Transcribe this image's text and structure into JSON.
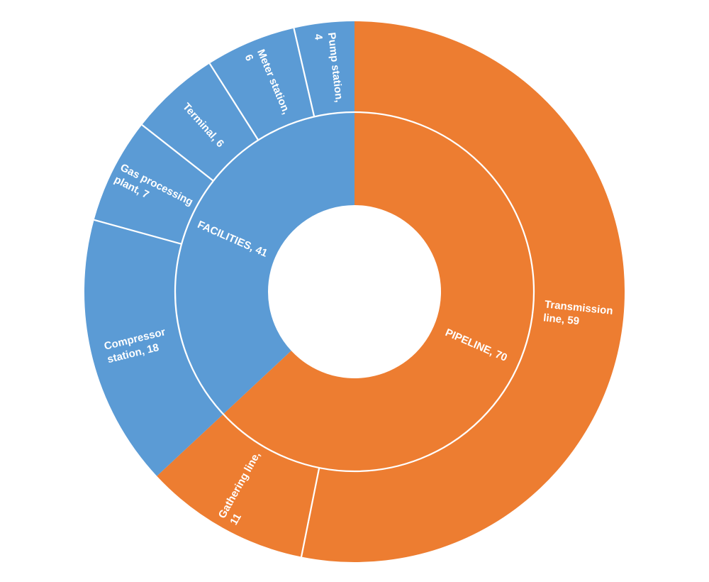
{
  "chart_data": {
    "type": "sunburst",
    "title": "",
    "total": 111,
    "background_color": "#FFFFFF",
    "label_color": "#FFFFFF",
    "divider_color": "#FFFFFF",
    "legend": "none",
    "layout": {
      "start_angle_deg": 0,
      "direction": "clockwise",
      "rings": 2
    },
    "series": [
      {
        "name": "PIPELINE",
        "value": 70,
        "color": "#ED7D31",
        "label_lines": [
          "PIPELINE, 70"
        ],
        "children": [
          {
            "name": "Transmission line",
            "value": 59,
            "label_lines": [
              "Transmission",
              "line, 59"
            ]
          },
          {
            "name": "Gathering line",
            "value": 11,
            "label_lines": [
              "Gathering line,",
              "11"
            ]
          }
        ]
      },
      {
        "name": "FACILITIES",
        "value": 41,
        "color": "#5B9BD5",
        "label_lines": [
          "FACILITIES, 41"
        ],
        "children": [
          {
            "name": "Compressor station",
            "value": 18,
            "label_lines": [
              "Compressor",
              "station, 18"
            ]
          },
          {
            "name": "Gas processing plant",
            "value": 7,
            "label_lines": [
              "Gas processing",
              "plant, 7"
            ]
          },
          {
            "name": "Terminal",
            "value": 6,
            "label_lines": [
              "Terminal, 6"
            ]
          },
          {
            "name": "Meter station",
            "value": 6,
            "label_lines": [
              "Meter station,",
              "6"
            ]
          },
          {
            "name": "Pump station",
            "value": 4,
            "label_lines": [
              "Pump station,",
              "4"
            ]
          }
        ]
      }
    ]
  }
}
